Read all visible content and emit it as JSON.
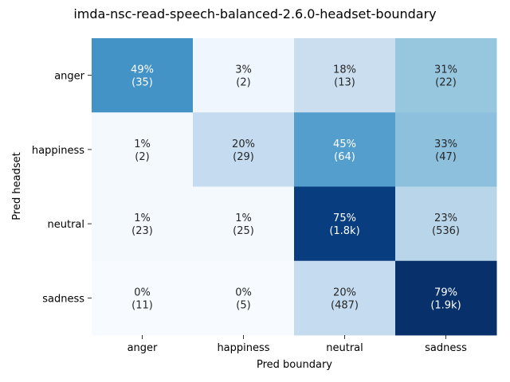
{
  "chart_data": {
    "type": "heatmap",
    "title": "imda-nsc-read-speech-balanced-2.6.0-headset-boundary",
    "xlabel": "Pred boundary",
    "ylabel": "Pred headset",
    "x_categories": [
      "anger",
      "happiness",
      "neutral",
      "sadness"
    ],
    "y_categories": [
      "anger",
      "happiness",
      "neutral",
      "sadness"
    ],
    "colormap": "Blues",
    "percent": [
      [
        49,
        3,
        18,
        31
      ],
      [
        1,
        20,
        45,
        33
      ],
      [
        1,
        1,
        75,
        23
      ],
      [
        0,
        0,
        20,
        79
      ]
    ],
    "counts": [
      [
        "35",
        "2",
        "13",
        "22"
      ],
      [
        "2",
        "29",
        "64",
        "47"
      ],
      [
        "23",
        "25",
        "1.8k",
        "536"
      ],
      [
        "11",
        "5",
        "487",
        "1.9k"
      ]
    ],
    "color_range": [
      0,
      79
    ]
  }
}
